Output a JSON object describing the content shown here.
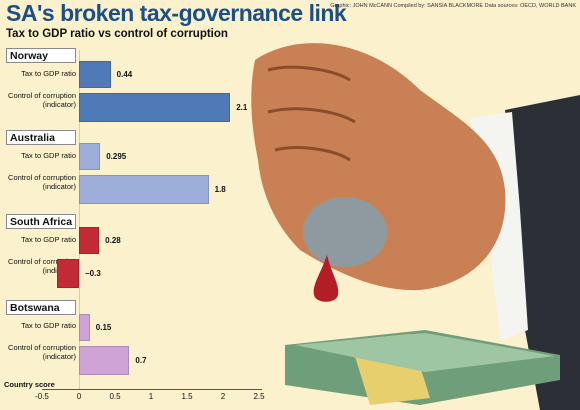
{
  "header": {
    "title": "SA's broken tax-governance link",
    "subtitle": "Tax to GDP ratio vs control of corruption",
    "credits": "Graphic: JOHN McCANN  Compiled by: SANSIA BLACKMORE  Data sources: OECD, WORLD BANK"
  },
  "chart_data": {
    "type": "bar",
    "orientation": "horizontal",
    "title": "Tax to GDP ratio vs control of corruption",
    "xlabel": "Country score",
    "xlim": [
      -0.5,
      2.5
    ],
    "xticks": [
      "-0.5",
      "0",
      "0.5",
      "1",
      "1.5",
      "2",
      "2.5"
    ],
    "groups": [
      {
        "country": "Norway",
        "color": "#4f79b7",
        "bars": [
          {
            "label": "Tax to GDP ratio",
            "value": 0.44,
            "value_label": "0.44"
          },
          {
            "label": "Control of corruption (indicator)",
            "value": 2.1,
            "value_label": "2.1"
          }
        ]
      },
      {
        "country": "Australia",
        "color": "#9daed8",
        "bars": [
          {
            "label": "Tax to GDP ratio",
            "value": 0.295,
            "value_label": "0.295"
          },
          {
            "label": "Control of corruption (indicator)",
            "value": 1.8,
            "value_label": "1.8"
          }
        ]
      },
      {
        "country": "South Africa",
        "color": "#c22a35",
        "bars": [
          {
            "label": "Tax to GDP ratio",
            "value": 0.28,
            "value_label": "0.28"
          },
          {
            "label": "Control of corruption (indicator)",
            "value": -0.3,
            "value_label": "−0.3"
          }
        ]
      },
      {
        "country": "Botswana",
        "color": "#cfa3d6",
        "bars": [
          {
            "label": "Tax to GDP ratio",
            "value": 0.15,
            "value_label": "0.15"
          },
          {
            "label": "Control of corruption (indicator)",
            "value": 0.7,
            "value_label": "0.7"
          }
        ]
      }
    ]
  }
}
